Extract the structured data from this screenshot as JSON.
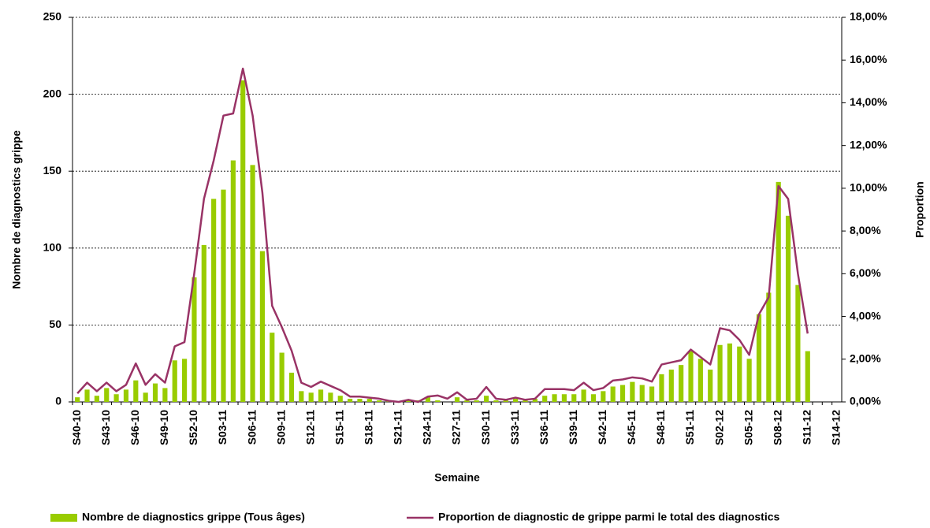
{
  "chart_data": {
    "type": "bar",
    "x_label": "Semaine",
    "y_label": "Nombre de diagnostics grippe",
    "y2_label": "Proportion",
    "categories": [
      "S40-10",
      null,
      null,
      "S43-10",
      null,
      null,
      "S46-10",
      null,
      null,
      "S49-10",
      null,
      null,
      "S52-10",
      null,
      null,
      "S03-11",
      null,
      null,
      "S06-11",
      null,
      null,
      "S09-11",
      null,
      null,
      "S12-11",
      null,
      null,
      "S15-11",
      null,
      null,
      "S18-11",
      null,
      null,
      "S21-11",
      null,
      null,
      "S24-11",
      null,
      null,
      "S27-11",
      null,
      null,
      "S30-11",
      null,
      null,
      "S33-11",
      null,
      null,
      "S36-11",
      null,
      null,
      "S39-11",
      null,
      null,
      "S42-11",
      null,
      null,
      "S45-11",
      null,
      null,
      "S48-11",
      null,
      null,
      "S51-11",
      null,
      null,
      "S02-12",
      null,
      null,
      "S05-12",
      null,
      null,
      "S08-12",
      null,
      null,
      "S11-12",
      null,
      null,
      "S14-12"
    ],
    "series": [
      {
        "name": "Nombre de diagnostics grippe (Tous âges)",
        "type": "bar",
        "axis": "y",
        "color": "#99cc00",
        "values": [
          3,
          8,
          4,
          9,
          5,
          8,
          14,
          6,
          12,
          9,
          27,
          28,
          81,
          102,
          132,
          138,
          157,
          209,
          154,
          98,
          45,
          32,
          19,
          7,
          6,
          8,
          6,
          4,
          2,
          2,
          2,
          1,
          1,
          0,
          1,
          1,
          3,
          1,
          0,
          3,
          1,
          1,
          4,
          1,
          1,
          2,
          1,
          2,
          4,
          5,
          5,
          5,
          8,
          5,
          7,
          10,
          11,
          13,
          11,
          10,
          18,
          21,
          24,
          33,
          28,
          21,
          37,
          38,
          36,
          28,
          57,
          71,
          143,
          121,
          76,
          33,
          null,
          null,
          null
        ]
      },
      {
        "name": "Proportion de diagnostic de grippe parmi le total des diagnostics",
        "type": "line",
        "axis": "y2",
        "color": "#993366",
        "values": [
          0.4,
          0.9,
          0.5,
          0.9,
          0.5,
          0.8,
          1.8,
          0.8,
          1.3,
          0.9,
          2.6,
          2.8,
          6.0,
          9.5,
          11.3,
          13.4,
          13.5,
          15.6,
          13.4,
          9.8,
          4.5,
          3.5,
          2.4,
          0.9,
          0.7,
          0.95,
          0.75,
          0.55,
          0.25,
          0.25,
          0.2,
          0.15,
          0.05,
          0.0,
          0.1,
          0.0,
          0.25,
          0.3,
          0.15,
          0.45,
          0.1,
          0.15,
          0.7,
          0.15,
          0.1,
          0.2,
          0.1,
          0.15,
          0.6,
          0.6,
          0.6,
          0.55,
          0.9,
          0.55,
          0.65,
          1.0,
          1.05,
          1.15,
          1.1,
          0.95,
          1.75,
          1.85,
          1.95,
          2.45,
          2.1,
          1.75,
          3.45,
          3.35,
          2.9,
          2.2,
          4.1,
          4.9,
          10.1,
          9.5,
          6.0,
          3.2,
          null,
          null,
          null
        ]
      }
    ],
    "ylim": [
      0,
      250
    ],
    "yticks": [
      0,
      50,
      100,
      150,
      200,
      250
    ],
    "y2lim": [
      0,
      18
    ],
    "y2ticks": [
      {
        "value": 0,
        "label": "0,00%"
      },
      {
        "value": 2,
        "label": "2,00%"
      },
      {
        "value": 4,
        "label": "4,00%"
      },
      {
        "value": 6,
        "label": "6,00%"
      },
      {
        "value": 8,
        "label": "8,00%"
      },
      {
        "value": 10,
        "label": "10,00%"
      },
      {
        "value": 12,
        "label": "12,00%"
      },
      {
        "value": 14,
        "label": "14,00%"
      },
      {
        "value": 16,
        "label": "16,00%"
      },
      {
        "value": 18,
        "label": "18,00%"
      }
    ],
    "grid": true,
    "legend": "bottom"
  }
}
